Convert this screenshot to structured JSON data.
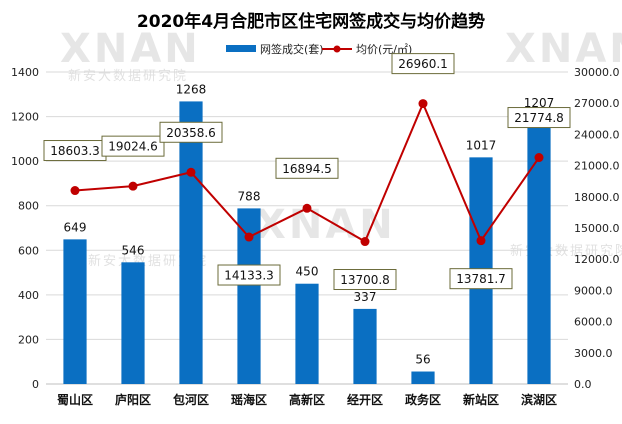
{
  "watermark": {
    "brand": "XNAN",
    "sub": "新安大数据研究院"
  },
  "chart_data": {
    "type": "bar+line",
    "title": "2020年4月合肥市区住宅网签成交与均价趋势",
    "categories": [
      "蜀山区",
      "庐阳区",
      "包河区",
      "瑶海区",
      "高新区",
      "经开区",
      "政务区",
      "新站区",
      "滨湖区"
    ],
    "series": [
      {
        "name": "网签成交(套)",
        "type": "bar",
        "axis": "left",
        "color": "#0a6fc2",
        "values": [
          649,
          546,
          1268,
          788,
          450,
          337,
          56,
          1017,
          1207
        ],
        "labels": [
          "649",
          "546",
          "1268",
          "788",
          "450",
          "337",
          "56",
          "1017",
          "1207"
        ]
      },
      {
        "name": "均价(元/㎡)",
        "type": "line",
        "axis": "right",
        "color": "#c00000",
        "values": [
          18603.3,
          19024.6,
          20358.6,
          14133.3,
          16894.5,
          13700.8,
          26960.1,
          13781.7,
          21774.8
        ],
        "labels": [
          "18603.3",
          "19024.6",
          "20358.6",
          "14133.3",
          "16894.5",
          "13700.8",
          "26960.1",
          "13781.7",
          "21774.8"
        ]
      }
    ],
    "left_axis": {
      "min": 0,
      "max": 1400,
      "ticks": [
        "0",
        "200",
        "400",
        "600",
        "800",
        "1000",
        "1200",
        "1400"
      ]
    },
    "right_axis": {
      "min": 0,
      "max": 30000,
      "ticks": [
        "0.0",
        "3000.0",
        "6000.0",
        "9000.0",
        "12000.0",
        "15000.0",
        "18000.0",
        "21000.0",
        "24000.0",
        "27000.0",
        "30000.0"
      ]
    },
    "grid": true,
    "legend": "top-center"
  }
}
